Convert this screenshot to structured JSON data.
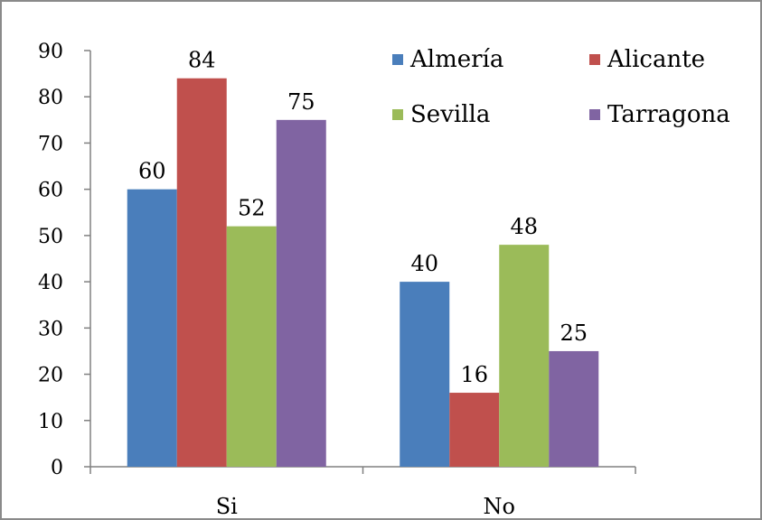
{
  "chart_data": {
    "type": "bar",
    "categories": [
      "Si",
      "No"
    ],
    "series": [
      {
        "name": "Almería",
        "values": [
          60,
          40
        ],
        "color": "#4a7ebb"
      },
      {
        "name": "Alicante",
        "values": [
          84,
          16
        ],
        "color": "#c0504d"
      },
      {
        "name": "Sevilla",
        "values": [
          52,
          48
        ],
        "color": "#9bbb59"
      },
      {
        "name": "Tarragona",
        "values": [
          75,
          25
        ],
        "color": "#8064a2"
      }
    ],
    "ylim": [
      0,
      90
    ],
    "yticks": [
      0,
      10,
      20,
      30,
      40,
      50,
      60,
      70,
      80,
      90
    ],
    "ytick_labels": [
      "0",
      "10",
      "20",
      "30",
      "40",
      "50",
      "60",
      "70",
      "80",
      "90"
    ],
    "grid": false,
    "legend_position": "top-right",
    "data_labels": true,
    "title": "",
    "xlabel": "",
    "ylabel": ""
  },
  "colors": {
    "frame_border": "#8a8a8a",
    "axis": "#808080"
  }
}
